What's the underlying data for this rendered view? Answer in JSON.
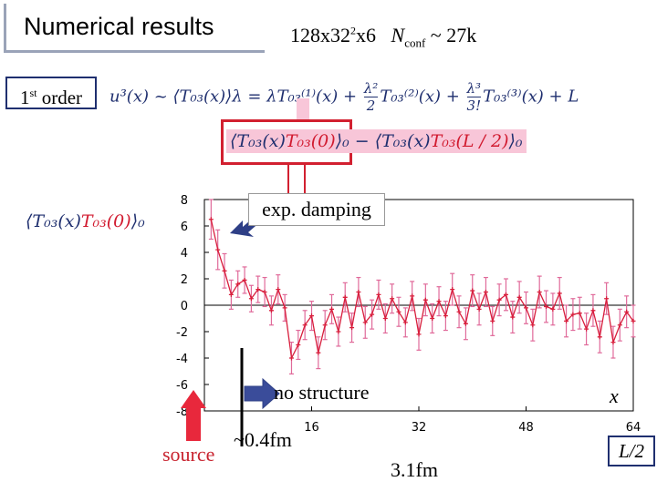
{
  "slide": {
    "title": "Numerical results",
    "lattice_prefix": "128x32",
    "lattice_exp": "2",
    "lattice_suffix": "x6",
    "nconf_N": "N",
    "nconf_sub": "conf",
    "nconf_value": " ~ 27k",
    "order_num": "1",
    "order_sup": "st",
    "order_text": " order"
  },
  "formula": {
    "lhs": "u³(x) ~ ⟨T₀₃(x)⟩λ = λT₀₃⁽¹⁾(x) + ",
    "frac2_num": "λ²",
    "frac2_den": "2",
    "term2": "T₀₃⁽²⁾(x) + ",
    "frac3_num": "λ³",
    "frac3_den": "3!",
    "term3": "T₀₃⁽³⁾(x) + L",
    "corr_open": "⟨T₀₃(x)",
    "corr_red": "T₀₃(0)",
    "corr_close": "⟩₀",
    "minus": " − ⟨T₀₃(x)",
    "minus_red": "T₀₃(L / 2)",
    "minus_close": "⟩₀",
    "side_open": "⟨T₀₃(x)",
    "side_red": "T₀₃(0)",
    "side_close": "⟩₀"
  },
  "annotations": {
    "damping": "exp. damping",
    "structure": "no structure",
    "x_var": "x",
    "source": "source",
    "dist_04": "~0.4fm",
    "dist_31": "3.1fm",
    "half_L": "L/2"
  },
  "colors": {
    "series": "#d81e3c",
    "errorbar": "#e06a9a",
    "arrow_blue": "#2e3f86",
    "source_arrow": "#e8283c",
    "highlight": "#d22030"
  },
  "chart_data": {
    "type": "line",
    "xlabel": "x",
    "ylabel": "",
    "xlim": [
      0,
      64
    ],
    "ylim": [
      -8,
      8
    ],
    "x_ticks": [
      16,
      32,
      48,
      64
    ],
    "y_ticks": [
      8,
      6,
      4,
      2,
      0,
      -2,
      -4,
      -6,
      -8
    ],
    "grid": false,
    "zero_line": true,
    "series": [
      {
        "x": [
          1,
          2,
          3,
          4,
          5,
          6,
          7,
          8,
          9,
          10,
          11,
          12,
          13,
          14,
          15,
          16,
          17,
          18,
          19,
          20,
          21,
          22,
          23,
          24,
          25,
          26,
          27,
          28,
          29,
          30,
          31,
          32,
          33,
          34,
          35,
          36,
          37,
          38,
          39,
          40,
          41,
          42,
          43,
          44,
          45,
          46,
          47,
          48,
          49,
          50,
          51,
          52,
          53,
          54,
          55,
          56,
          57,
          58,
          59,
          60,
          61,
          62,
          63,
          64
        ],
        "y": [
          6.5,
          4.2,
          2.6,
          0.8,
          1.6,
          1.9,
          0.5,
          1.2,
          1.0,
          -0.4,
          1.2,
          -0.2,
          -4.0,
          -3.0,
          -1.5,
          -0.8,
          -3.6,
          -1.5,
          -0.3,
          -2.0,
          0.6,
          -1.7,
          1.0,
          -1.3,
          -0.7,
          0.8,
          -1.0,
          0.5,
          -0.5,
          -1.3,
          0.7,
          -2.2,
          0.4,
          -1.0,
          0.3,
          -0.8,
          1.2,
          -0.5,
          -1.4,
          1.1,
          -0.3,
          1.0,
          -1.2,
          0.4,
          0.8,
          -0.9,
          0.6,
          -0.2,
          -1.5,
          1.0,
          -0.1,
          -0.3,
          0.9,
          -1.2,
          -0.7,
          -0.6,
          -1.8,
          -0.4,
          -2.4,
          0.5,
          -2.8,
          -1.5,
          -0.5,
          -1.2
        ],
        "error": [
          1.5,
          1.5,
          1.3,
          1.1,
          1.0,
          1.0,
          1.0,
          1.0,
          1.1,
          1.1,
          1.1,
          1.0,
          1.2,
          1.1,
          1.1,
          1.1,
          1.2,
          1.1,
          1.1,
          1.1,
          1.1,
          1.1,
          1.1,
          1.2,
          1.1,
          1.1,
          1.1,
          1.1,
          1.1,
          1.1,
          1.1,
          1.2,
          1.2,
          1.1,
          1.1,
          1.1,
          1.2,
          1.2,
          1.2,
          1.2,
          1.2,
          1.1,
          1.1,
          1.2,
          1.2,
          1.2,
          1.2,
          1.2,
          1.2,
          1.2,
          1.2,
          1.2,
          1.2,
          1.2,
          1.2,
          1.2,
          1.2,
          1.2,
          1.2,
          1.2,
          1.2,
          1.2,
          1.2,
          1.2
        ]
      }
    ]
  }
}
